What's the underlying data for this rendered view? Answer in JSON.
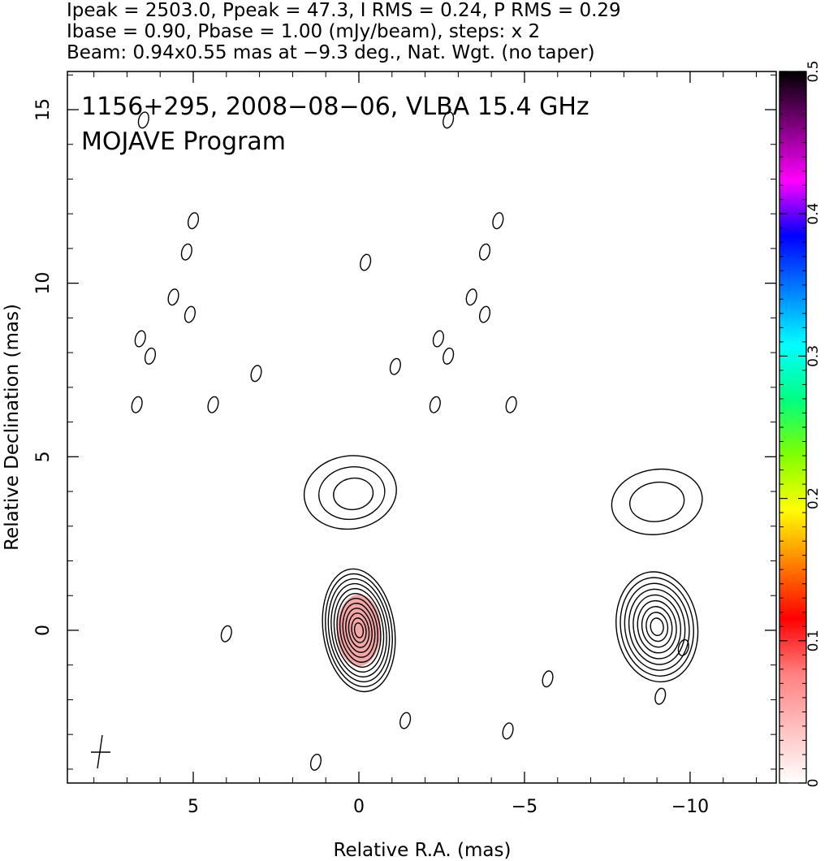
{
  "header": {
    "line1": "Ipeak = 2503.0, Ppeak = 47.3, I RMS = 0.24, P RMS = 0.29",
    "line2": "Ibase = 0.90, Pbase = 1.00 (mJy/beam), steps: x 2",
    "line3": "Beam: 0.94x0.55 mas at −9.3 deg., Nat. Wgt. (no taper)"
  },
  "chart_data": {
    "type": "contour",
    "title": "1156+295, 2008−08−06, VLBA 15.4 GHz",
    "subtitle": "MOJAVE Program",
    "xlabel": "Relative R.A. (mas)",
    "ylabel": "Relative Declination (mas)",
    "xlim": [
      8.8,
      -12.6
    ],
    "ylim": [
      -4.4,
      16.1
    ],
    "x_reversed": true,
    "x_ticks": [
      5,
      0,
      -5,
      -10
    ],
    "x_tick_labels": [
      "5",
      "0",
      "−5",
      "−10"
    ],
    "y_ticks": [
      0,
      5,
      10,
      15
    ],
    "y_tick_labels": [
      "0",
      "5",
      "10",
      "15"
    ],
    "colorbar": {
      "range": [
        0,
        0.5
      ],
      "ticks": [
        0,
        0.1,
        0.2,
        0.3,
        0.4,
        0.5
      ],
      "tick_labels": [
        "0",
        "0.1",
        "0.2",
        "0.3",
        "0.4",
        "0.5"
      ],
      "colors": [
        "#ffffff",
        "#ffc0c0",
        "#ff8080",
        "#ff0000",
        "#ff8000",
        "#ffff00",
        "#80ff00",
        "#00ff80",
        "#00ffff",
        "#0080ff",
        "#0000ff",
        "#ff00ff",
        "#800080",
        "#000000"
      ]
    },
    "sources": [
      {
        "x": 0.0,
        "y": 0.0,
        "contour_levels": 12,
        "filled": true,
        "fill_color": "#f4a6a6"
      },
      {
        "x": 0.1,
        "y": 3.9,
        "contour_levels": 3
      },
      {
        "x": -9.0,
        "y": 0.1,
        "contour_levels": 9
      },
      {
        "x": -9.0,
        "y": 3.7,
        "contour_levels": 2
      }
    ],
    "noise_features": [
      {
        "x": 5.0,
        "y": 11.8
      },
      {
        "x": 5.2,
        "y": 10.9
      },
      {
        "x": 5.6,
        "y": 9.6
      },
      {
        "x": 5.1,
        "y": 9.1
      },
      {
        "x": 6.6,
        "y": 8.4
      },
      {
        "x": 6.3,
        "y": 7.9
      },
      {
        "x": 6.7,
        "y": 6.5
      },
      {
        "x": 4.4,
        "y": 6.5
      },
      {
        "x": 3.1,
        "y": 7.4
      },
      {
        "x": 6.5,
        "y": 14.7
      },
      {
        "x": -0.2,
        "y": 10.6
      },
      {
        "x": -1.1,
        "y": 7.6
      },
      {
        "x": -2.7,
        "y": 14.7
      },
      {
        "x": -4.2,
        "y": 11.8
      },
      {
        "x": -3.8,
        "y": 10.9
      },
      {
        "x": -3.4,
        "y": 9.6
      },
      {
        "x": -3.8,
        "y": 9.1
      },
      {
        "x": -2.4,
        "y": 8.4
      },
      {
        "x": -2.7,
        "y": 7.9
      },
      {
        "x": -2.3,
        "y": 6.5
      },
      {
        "x": -4.6,
        "y": 6.5
      },
      {
        "x": 4.0,
        "y": -0.1
      },
      {
        "x": -1.4,
        "y": -2.6
      },
      {
        "x": -5.7,
        "y": -1.4
      },
      {
        "x": -4.5,
        "y": -2.9
      },
      {
        "x": 1.3,
        "y": -3.8
      },
      {
        "x": -9.1,
        "y": -1.9
      },
      {
        "x": -9.8,
        "y": -0.5
      }
    ]
  }
}
